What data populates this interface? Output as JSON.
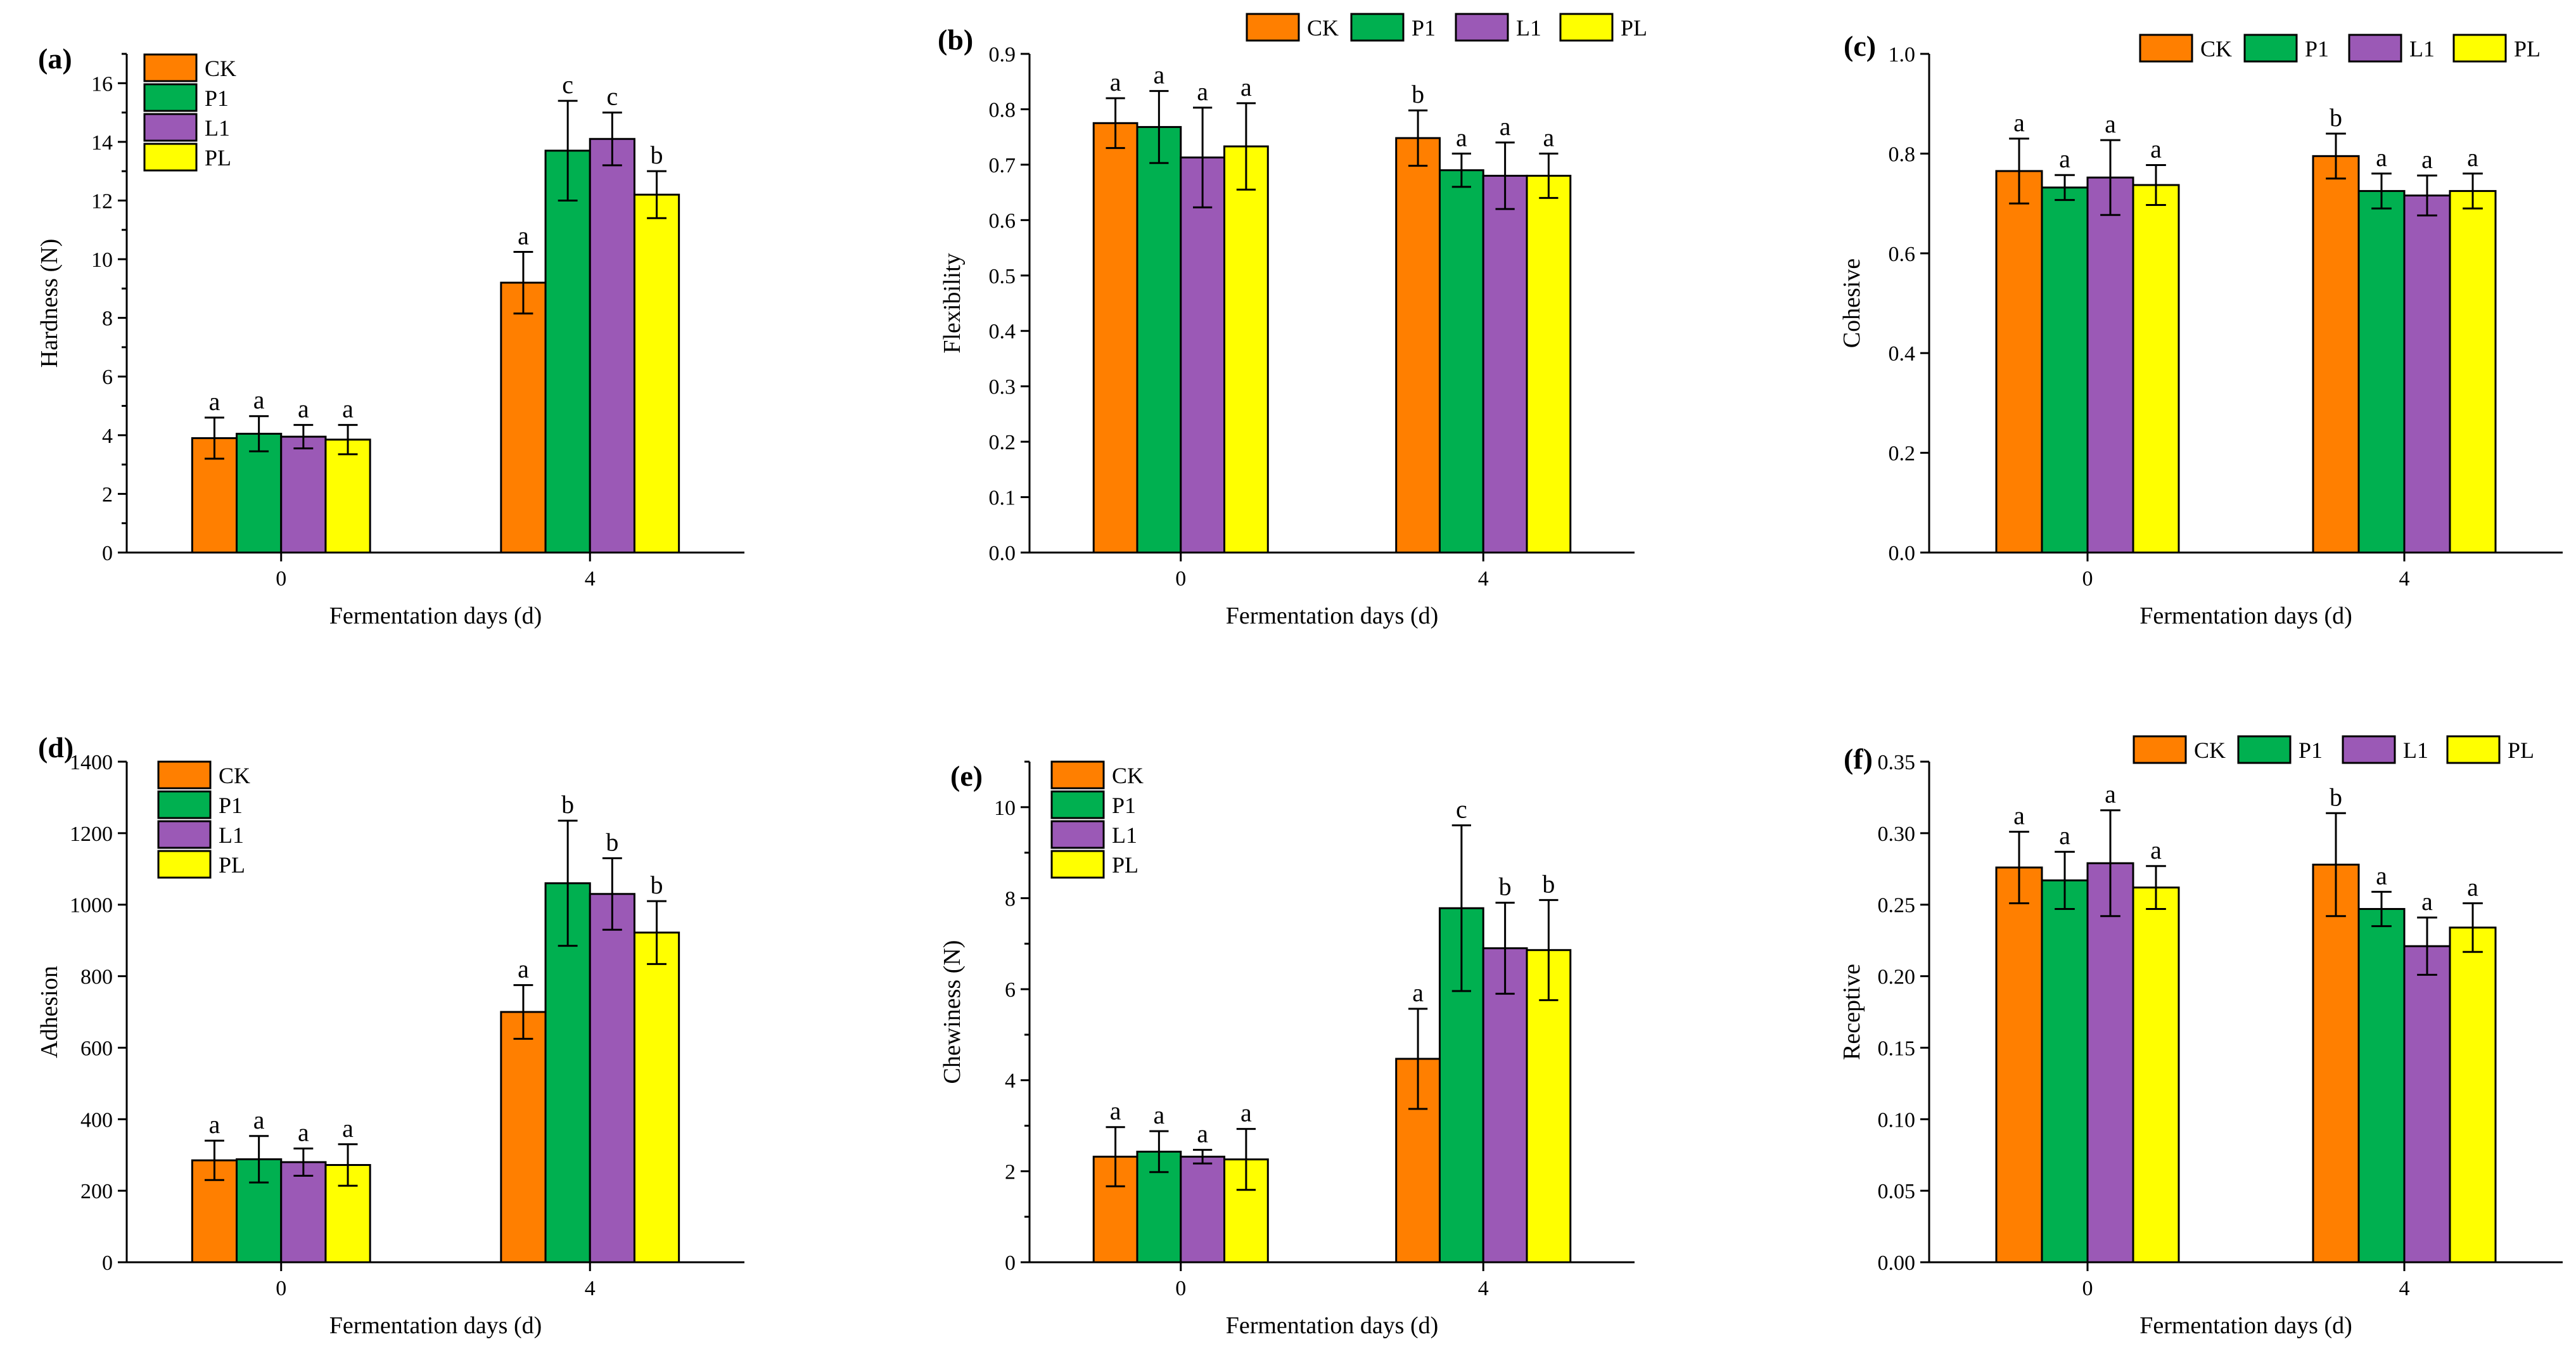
{
  "figure": {
    "series_colors": {
      "CK": "#ff7f00",
      "P1": "#00b050",
      "L1": "#9b59b6",
      "PL": "#ffff00"
    },
    "series_names": [
      "CK",
      "P1",
      "L1",
      "PL"
    ]
  },
  "chart_data": [
    {
      "id": "a",
      "panel_label": "(a)",
      "type": "bar",
      "title": "",
      "xlabel": "Fermentation days (d)",
      "ylabel": "Hardness (N)",
      "categories": [
        "0",
        "4"
      ],
      "ylim": [
        0,
        17
      ],
      "yticks": [
        0,
        2,
        4,
        6,
        8,
        10,
        12,
        14,
        16
      ],
      "ytick_labels": [
        "0",
        "2",
        "4",
        "6",
        "8",
        "10",
        "12",
        "14",
        "16"
      ],
      "minor_ticks": true,
      "legend": "vertical-top-left",
      "series": [
        {
          "name": "CK",
          "values": [
            3.9,
            9.2
          ],
          "errors": [
            0.7,
            1.05
          ],
          "letters": [
            "a",
            "a"
          ]
        },
        {
          "name": "P1",
          "values": [
            4.05,
            13.7
          ],
          "errors": [
            0.6,
            1.7
          ],
          "letters": [
            "a",
            "c"
          ]
        },
        {
          "name": "L1",
          "values": [
            3.95,
            14.1
          ],
          "errors": [
            0.4,
            0.9
          ],
          "letters": [
            "a",
            "c"
          ]
        },
        {
          "name": "PL",
          "values": [
            3.85,
            12.2
          ],
          "errors": [
            0.5,
            0.8
          ],
          "letters": [
            "a",
            "b"
          ]
        }
      ]
    },
    {
      "id": "b",
      "panel_label": "(b)",
      "type": "bar",
      "title": "",
      "xlabel": "Fermentation days (d)",
      "ylabel": "Flexibility",
      "categories": [
        "0",
        "4"
      ],
      "ylim": [
        0,
        0.9
      ],
      "yticks": [
        0,
        0.1,
        0.2,
        0.3,
        0.4,
        0.5,
        0.6,
        0.7,
        0.8,
        0.9
      ],
      "ytick_labels": [
        "0.0",
        "0.1",
        "0.2",
        "0.3",
        "0.4",
        "0.5",
        "0.6",
        "0.7",
        "0.8",
        "0.9"
      ],
      "minor_ticks": false,
      "legend": "horizontal-top",
      "series": [
        {
          "name": "CK",
          "values": [
            0.775,
            0.748
          ],
          "errors": [
            0.045,
            0.05
          ],
          "letters": [
            "a",
            "b"
          ]
        },
        {
          "name": "P1",
          "values": [
            0.768,
            0.69
          ],
          "errors": [
            0.065,
            0.03
          ],
          "letters": [
            "a",
            "a"
          ]
        },
        {
          "name": "L1",
          "values": [
            0.713,
            0.68
          ],
          "errors": [
            0.09,
            0.06
          ],
          "letters": [
            "a",
            "a"
          ]
        },
        {
          "name": "PL",
          "values": [
            0.733,
            0.68
          ],
          "errors": [
            0.078,
            0.04
          ],
          "letters": [
            "a",
            "a"
          ]
        }
      ]
    },
    {
      "id": "c",
      "panel_label": "(c)",
      "type": "bar",
      "title": "",
      "xlabel": "Fermentation days (d)",
      "ylabel": "Cohesive",
      "categories": [
        "0",
        "4"
      ],
      "ylim": [
        0,
        1.0
      ],
      "yticks": [
        0,
        0.2,
        0.4,
        0.6,
        0.8,
        1.0
      ],
      "ytick_labels": [
        "0.0",
        "0.2",
        "0.4",
        "0.6",
        "0.8",
        "1.0"
      ],
      "minor_ticks": false,
      "legend": "horizontal-top",
      "series": [
        {
          "name": "CK",
          "values": [
            0.765,
            0.795
          ],
          "errors": [
            0.065,
            0.045
          ],
          "letters": [
            "a",
            "b"
          ]
        },
        {
          "name": "P1",
          "values": [
            0.732,
            0.725
          ],
          "errors": [
            0.025,
            0.035
          ],
          "letters": [
            "a",
            "a"
          ]
        },
        {
          "name": "L1",
          "values": [
            0.752,
            0.716
          ],
          "errors": [
            0.075,
            0.04
          ],
          "letters": [
            "a",
            "a"
          ]
        },
        {
          "name": "PL",
          "values": [
            0.737,
            0.725
          ],
          "errors": [
            0.04,
            0.035
          ],
          "letters": [
            "a",
            "a"
          ]
        }
      ]
    },
    {
      "id": "d",
      "panel_label": "(d)",
      "type": "bar",
      "title": "",
      "xlabel": "Fermentation days (d)",
      "ylabel": "Adhesion",
      "categories": [
        "0",
        "4"
      ],
      "ylim": [
        0,
        1400
      ],
      "yticks": [
        0,
        200,
        400,
        600,
        800,
        1000,
        1200,
        1400
      ],
      "ytick_labels": [
        "0",
        "200",
        "400",
        "600",
        "800",
        "1000",
        "1200",
        "1400"
      ],
      "minor_ticks": false,
      "legend": "vertical-top-left",
      "series": [
        {
          "name": "CK",
          "values": [
            285,
            700
          ],
          "errors": [
            55,
            75
          ],
          "letters": [
            "a",
            "a"
          ]
        },
        {
          "name": "P1",
          "values": [
            288,
            1060
          ],
          "errors": [
            65,
            175
          ],
          "letters": [
            "a",
            "b"
          ]
        },
        {
          "name": "L1",
          "values": [
            280,
            1030
          ],
          "errors": [
            38,
            100
          ],
          "letters": [
            "a",
            "b"
          ]
        },
        {
          "name": "PL",
          "values": [
            272,
            922
          ],
          "errors": [
            58,
            88
          ],
          "letters": [
            "a",
            "b"
          ]
        }
      ]
    },
    {
      "id": "e",
      "panel_label": "(e)",
      "type": "bar",
      "title": "",
      "xlabel": "Fermentation days (d)",
      "ylabel": "Chewiness (N)",
      "categories": [
        "0",
        "4"
      ],
      "ylim": [
        0,
        11
      ],
      "yticks": [
        0,
        2,
        4,
        6,
        8,
        10
      ],
      "ytick_labels": [
        "0",
        "2",
        "4",
        "6",
        "8",
        "10"
      ],
      "minor_ticks": true,
      "legend": "vertical-top-left",
      "series": [
        {
          "name": "CK",
          "values": [
            2.32,
            4.47
          ],
          "errors": [
            0.65,
            1.1
          ],
          "letters": [
            "a",
            "a"
          ]
        },
        {
          "name": "P1",
          "values": [
            2.43,
            7.78
          ],
          "errors": [
            0.45,
            1.82
          ],
          "letters": [
            "a",
            "c"
          ]
        },
        {
          "name": "L1",
          "values": [
            2.32,
            6.9
          ],
          "errors": [
            0.15,
            1.0
          ],
          "letters": [
            "a",
            "b"
          ]
        },
        {
          "name": "PL",
          "values": [
            2.26,
            6.86
          ],
          "errors": [
            0.67,
            1.1
          ],
          "letters": [
            "a",
            "b"
          ]
        }
      ]
    },
    {
      "id": "f",
      "panel_label": "(f)",
      "type": "bar",
      "title": "",
      "xlabel": "Fermentation days (d)",
      "ylabel": "Receptive",
      "categories": [
        "0",
        "4"
      ],
      "ylim": [
        0,
        0.35
      ],
      "yticks": [
        0,
        0.05,
        0.1,
        0.15,
        0.2,
        0.25,
        0.3,
        0.35
      ],
      "ytick_labels": [
        "0.00",
        "0.05",
        "0.10",
        "0.15",
        "0.20",
        "0.25",
        "0.30",
        "0.35"
      ],
      "minor_ticks": false,
      "legend": "horizontal-top",
      "series": [
        {
          "name": "CK",
          "values": [
            0.276,
            0.278
          ],
          "errors": [
            0.025,
            0.036
          ],
          "letters": [
            "a",
            "b"
          ]
        },
        {
          "name": "P1",
          "values": [
            0.267,
            0.247
          ],
          "errors": [
            0.02,
            0.012
          ],
          "letters": [
            "a",
            "a"
          ]
        },
        {
          "name": "L1",
          "values": [
            0.279,
            0.221
          ],
          "errors": [
            0.037,
            0.02
          ],
          "letters": [
            "a",
            "a"
          ]
        },
        {
          "name": "PL",
          "values": [
            0.262,
            0.234
          ],
          "errors": [
            0.015,
            0.017
          ],
          "letters": [
            "a",
            "a"
          ]
        }
      ]
    }
  ]
}
